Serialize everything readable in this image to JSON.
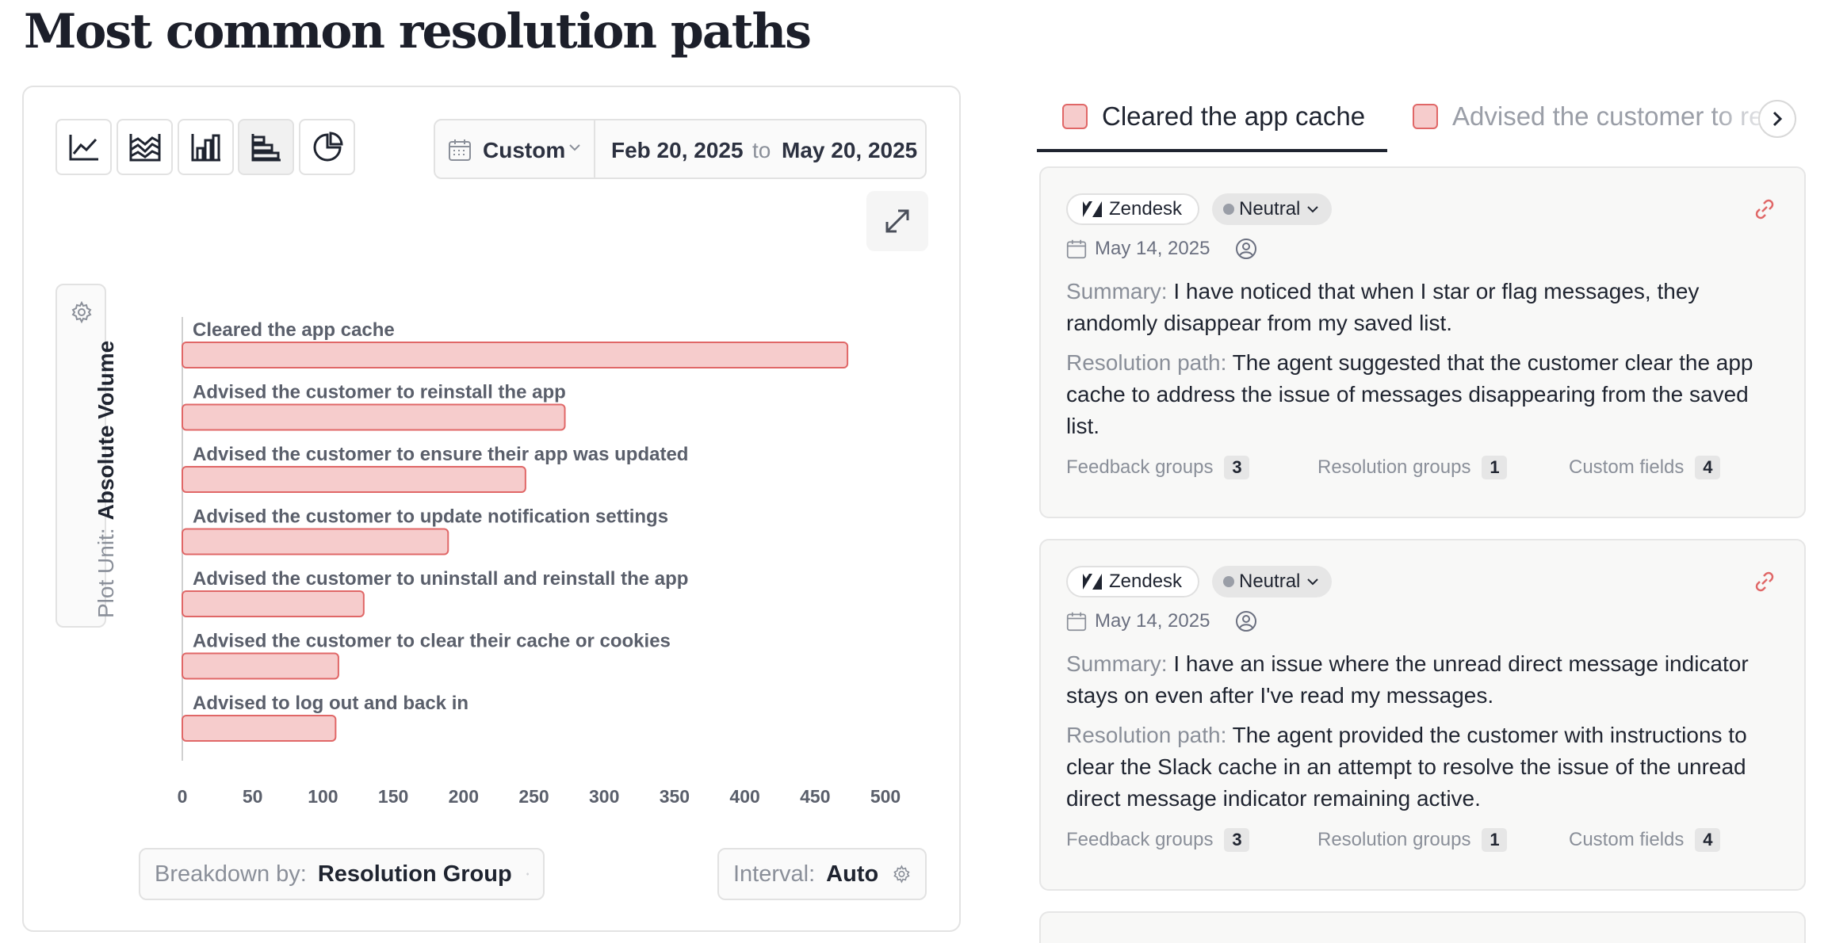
{
  "page": {
    "title": "Most common resolution paths"
  },
  "toolbar": {
    "chart_types": [
      "line-chart-icon",
      "area-chart-icon",
      "vertical-bar-chart-icon",
      "horizontal-bar-chart-icon",
      "pie-chart-icon"
    ],
    "active_chart_type": "horizontal-bar-chart-icon",
    "range_preset": "Custom",
    "date_from": "Feb 20, 2025",
    "date_sep": "to",
    "date_to": "May 20, 2025"
  },
  "plot_unit": {
    "label": "Plot Unit:",
    "value": "Absolute Volume"
  },
  "breakdown": {
    "label": "Breakdown by:",
    "value": "Resolution Group"
  },
  "interval": {
    "label": "Interval:",
    "value": "Auto"
  },
  "chart_data": {
    "type": "bar",
    "orientation": "horizontal",
    "categories": [
      "Cleared the app cache",
      "Advised the customer to reinstall the app",
      "Advised the customer to ensure their app was updated",
      "Advised the customer to update notification settings",
      "Advised the customer to uninstall and reinstall the app",
      "Advised the customer to clear their cache or cookies",
      "Advised to log out and back in"
    ],
    "values": [
      473,
      272,
      244,
      189,
      129,
      111,
      109
    ],
    "xlim": [
      0,
      500
    ],
    "xticks": [
      "0",
      "50",
      "100",
      "150",
      "200",
      "250",
      "300",
      "350",
      "400",
      "450",
      "500"
    ],
    "grid": false,
    "colors": {
      "fill": "#f6cccc",
      "stroke": "#e06767"
    }
  },
  "tabs": [
    {
      "label": "Cleared the app cache",
      "active": true
    },
    {
      "label": "Advised the customer to reinstall the app",
      "active": false
    }
  ],
  "cards": [
    {
      "source": "Zendesk",
      "sentiment": "Neutral",
      "date": "May 14, 2025",
      "summary_label": "Summary:",
      "summary": "I have noticed that when I star or flag messages, they randomly disappear from my saved list.",
      "resolution_label": "Resolution path:",
      "resolution": "The agent suggested that the customer clear the app cache to address the issue of messages disappearing from the saved list.",
      "feedback_label": "Feedback groups",
      "feedback_count": "3",
      "resolution_groups_label": "Resolution groups",
      "resolution_groups_count": "1",
      "custom_label": "Custom fields",
      "custom_count": "4"
    },
    {
      "source": "Zendesk",
      "sentiment": "Neutral",
      "date": "May 14, 2025",
      "summary_label": "Summary:",
      "summary": "I have an issue where the unread direct message indicator stays on even after I've read my messages.",
      "resolution_label": "Resolution path:",
      "resolution": "The agent provided the customer with instructions to clear the Slack cache in an attempt to resolve the issue of the unread direct message indicator remaining active.",
      "feedback_label": "Feedback groups",
      "feedback_count": "3",
      "resolution_groups_label": "Resolution groups",
      "resolution_groups_count": "1",
      "custom_label": "Custom fields",
      "custom_count": "4"
    }
  ]
}
